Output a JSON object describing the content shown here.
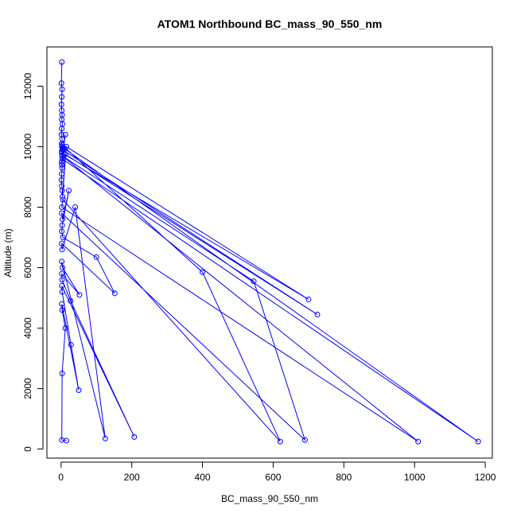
{
  "chart_data": {
    "type": "line",
    "title": "ATOM1 Northbound BC_mass_90_550_nm",
    "xlabel": "BC_mass_90_550_nm",
    "ylabel": "Altitude (m)",
    "xlim": [
      -40,
      1220
    ],
    "ylim": [
      -300,
      13300
    ],
    "xticks": [
      0,
      200,
      400,
      600,
      800,
      1000,
      1200
    ],
    "yticks": [
      0,
      2000,
      4000,
      6000,
      8000,
      10000,
      12000
    ],
    "grid": false,
    "line_color": "#0000ff",
    "marker": "open-circle",
    "series": [
      {
        "x": [
          2,
          1,
          3,
          2,
          1,
          2,
          3,
          2,
          4,
          2,
          1,
          3,
          2,
          2,
          5,
          2,
          3,
          12,
          2,
          3,
          2,
          1,
          2,
          3,
          4,
          15,
          700,
          2,
          8,
          1180,
          3,
          2,
          4,
          725,
          12,
          2,
          3,
          400,
          620,
          5,
          2,
          1010,
          3,
          545,
          690,
          2,
          4,
          22,
          3,
          2,
          5,
          100,
          152,
          2,
          3,
          40,
          125,
          2,
          4,
          52,
          2,
          3,
          27,
          207,
          2,
          3,
          28,
          50,
          2,
          3,
          12,
          3,
          2,
          15
        ],
        "y": [
          12800,
          12100,
          11900,
          11650,
          11400,
          11200,
          11050,
          10900,
          10750,
          10600,
          10400,
          10250,
          10100,
          10000,
          9950,
          9850,
          9700,
          10400,
          9500,
          9300,
          9100,
          8900,
          8700,
          8550,
          8350,
          10000,
          4950,
          9800,
          9950,
          250,
          9600,
          9400,
          9900,
          4450,
          9750,
          9500,
          10050,
          5850,
          250,
          8250,
          8000,
          250,
          9700,
          5550,
          300,
          7800,
          7600,
          8550,
          7400,
          7200,
          7000,
          6350,
          5150,
          6800,
          6600,
          8000,
          350,
          6200,
          6000,
          5100,
          5800,
          5600,
          4900,
          400,
          5400,
          5200,
          3450,
          1950,
          4800,
          4600,
          4000,
          2500,
          300,
          280
        ]
      }
    ]
  }
}
